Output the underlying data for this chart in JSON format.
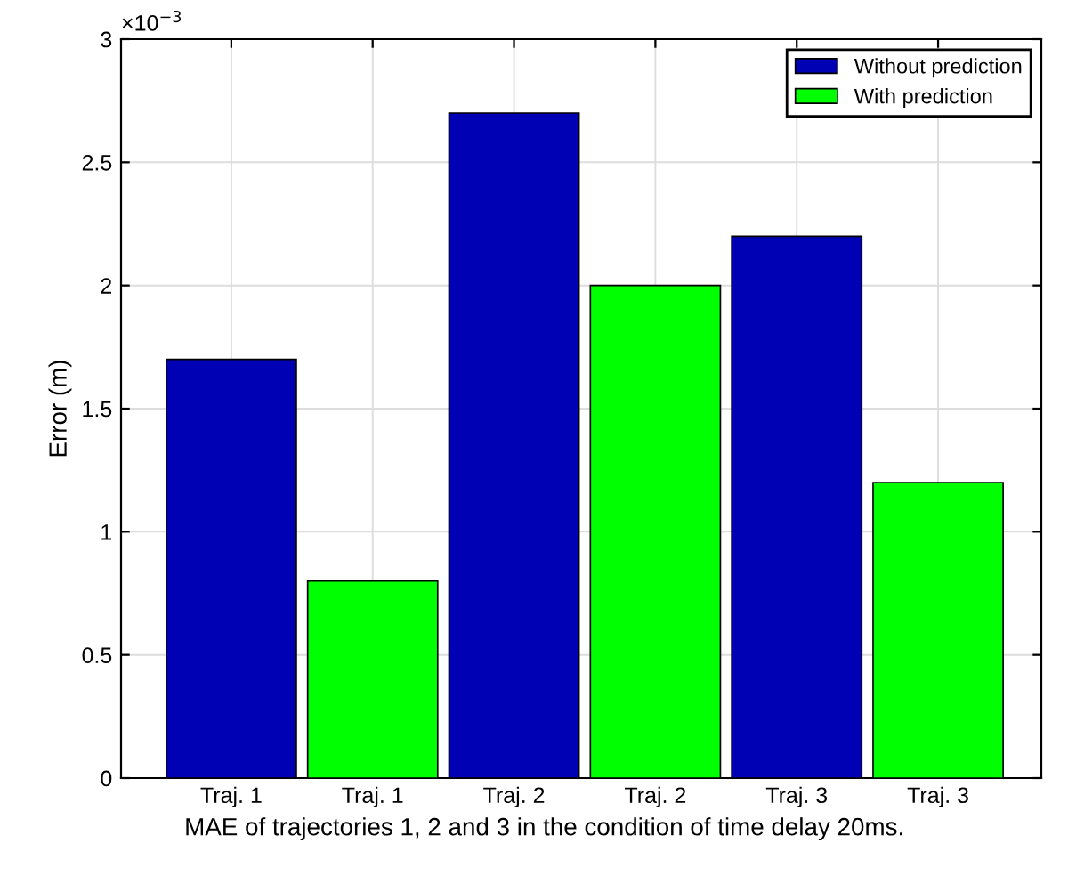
{
  "chart_data": {
    "type": "bar",
    "categories": [
      "Traj. 1",
      "Traj. 1",
      "Traj. 2",
      "Traj. 2",
      "Traj. 3",
      "Traj. 3"
    ],
    "series": [
      {
        "name": "Without prediction",
        "color": "#0000b4",
        "values": [
          1.7,
          null,
          2.7,
          null,
          2.2,
          null
        ]
      },
      {
        "name": "With prediction",
        "color": "#00ff00",
        "values": [
          null,
          0.8,
          null,
          2,
          null,
          1.2
        ]
      }
    ],
    "xlabel": "MAE of trajectories 1, 2 and 3 in the condition of time delay 20ms.",
    "ylabel": "Error (m)",
    "ylim": [
      0,
      3
    ],
    "yticks": [
      0,
      0.5,
      1,
      1.5,
      2,
      2.5,
      3
    ],
    "annotations": [
      "×10$^{−3}$"
    ],
    "grid": true,
    "legend": "top right"
  }
}
